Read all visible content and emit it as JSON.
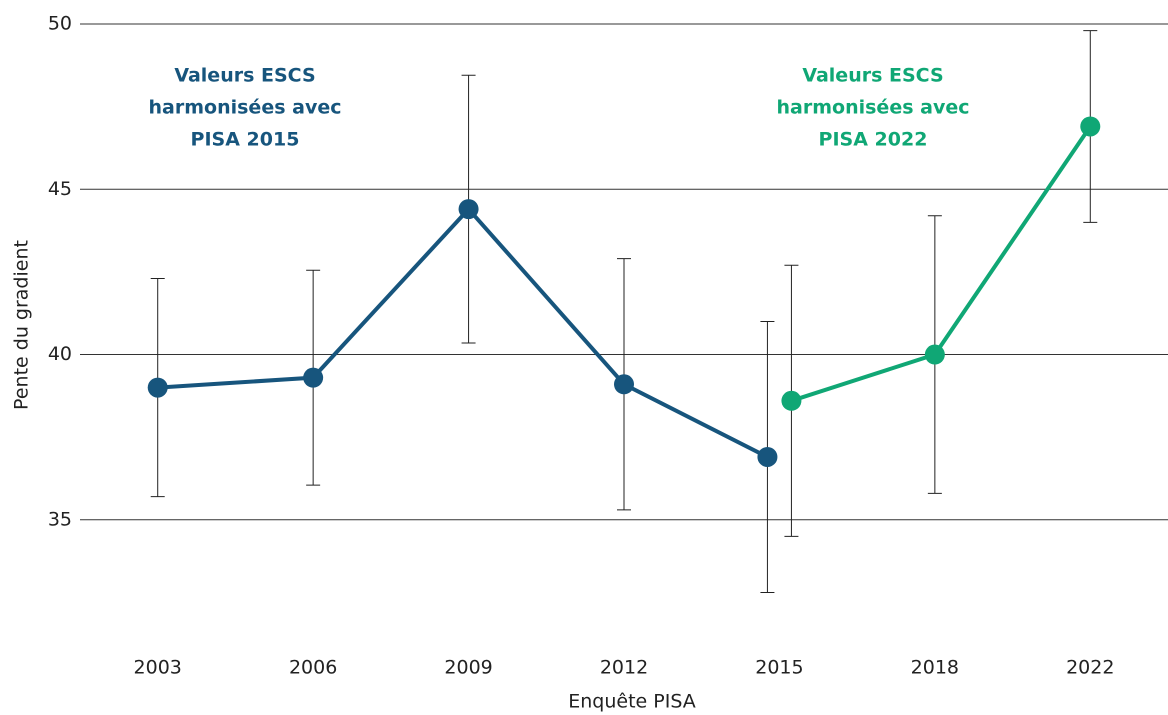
{
  "chart_data": {
    "type": "line",
    "xlabel": "Enquête PISA",
    "ylabel": "Pente du gradient",
    "categories": [
      "2003",
      "2006",
      "2009",
      "2012",
      "2015",
      "2018",
      "2022"
    ],
    "series": [
      {
        "name": "Valeurs ESCS harmonisées avec PISA 2015",
        "color": "#17557d",
        "values": [
          39.0,
          39.3,
          44.4,
          39.1,
          36.9,
          null,
          null
        ],
        "errors": [
          3.3,
          3.25,
          4.05,
          3.8,
          4.1,
          null,
          null
        ]
      },
      {
        "name": "Valeurs ESCS harmonisées avec PISA 2022",
        "color": "#10a775",
        "values": [
          null,
          null,
          null,
          null,
          38.6,
          40.0,
          46.9
        ],
        "errors": [
          null,
          null,
          null,
          null,
          4.1,
          4.2,
          2.9
        ]
      }
    ],
    "annotations": [
      {
        "lines": [
          "Valeurs ESCS",
          "harmonisées avec",
          "PISA 2015"
        ],
        "color": "#17557d"
      },
      {
        "lines": [
          "Valeurs ESCS",
          "harmonisées avec",
          "PISA 2022"
        ],
        "color": "#10a775"
      }
    ],
    "ylim": [
      31,
      50
    ],
    "yticks": [
      35,
      40,
      45,
      50
    ],
    "grid": true
  }
}
